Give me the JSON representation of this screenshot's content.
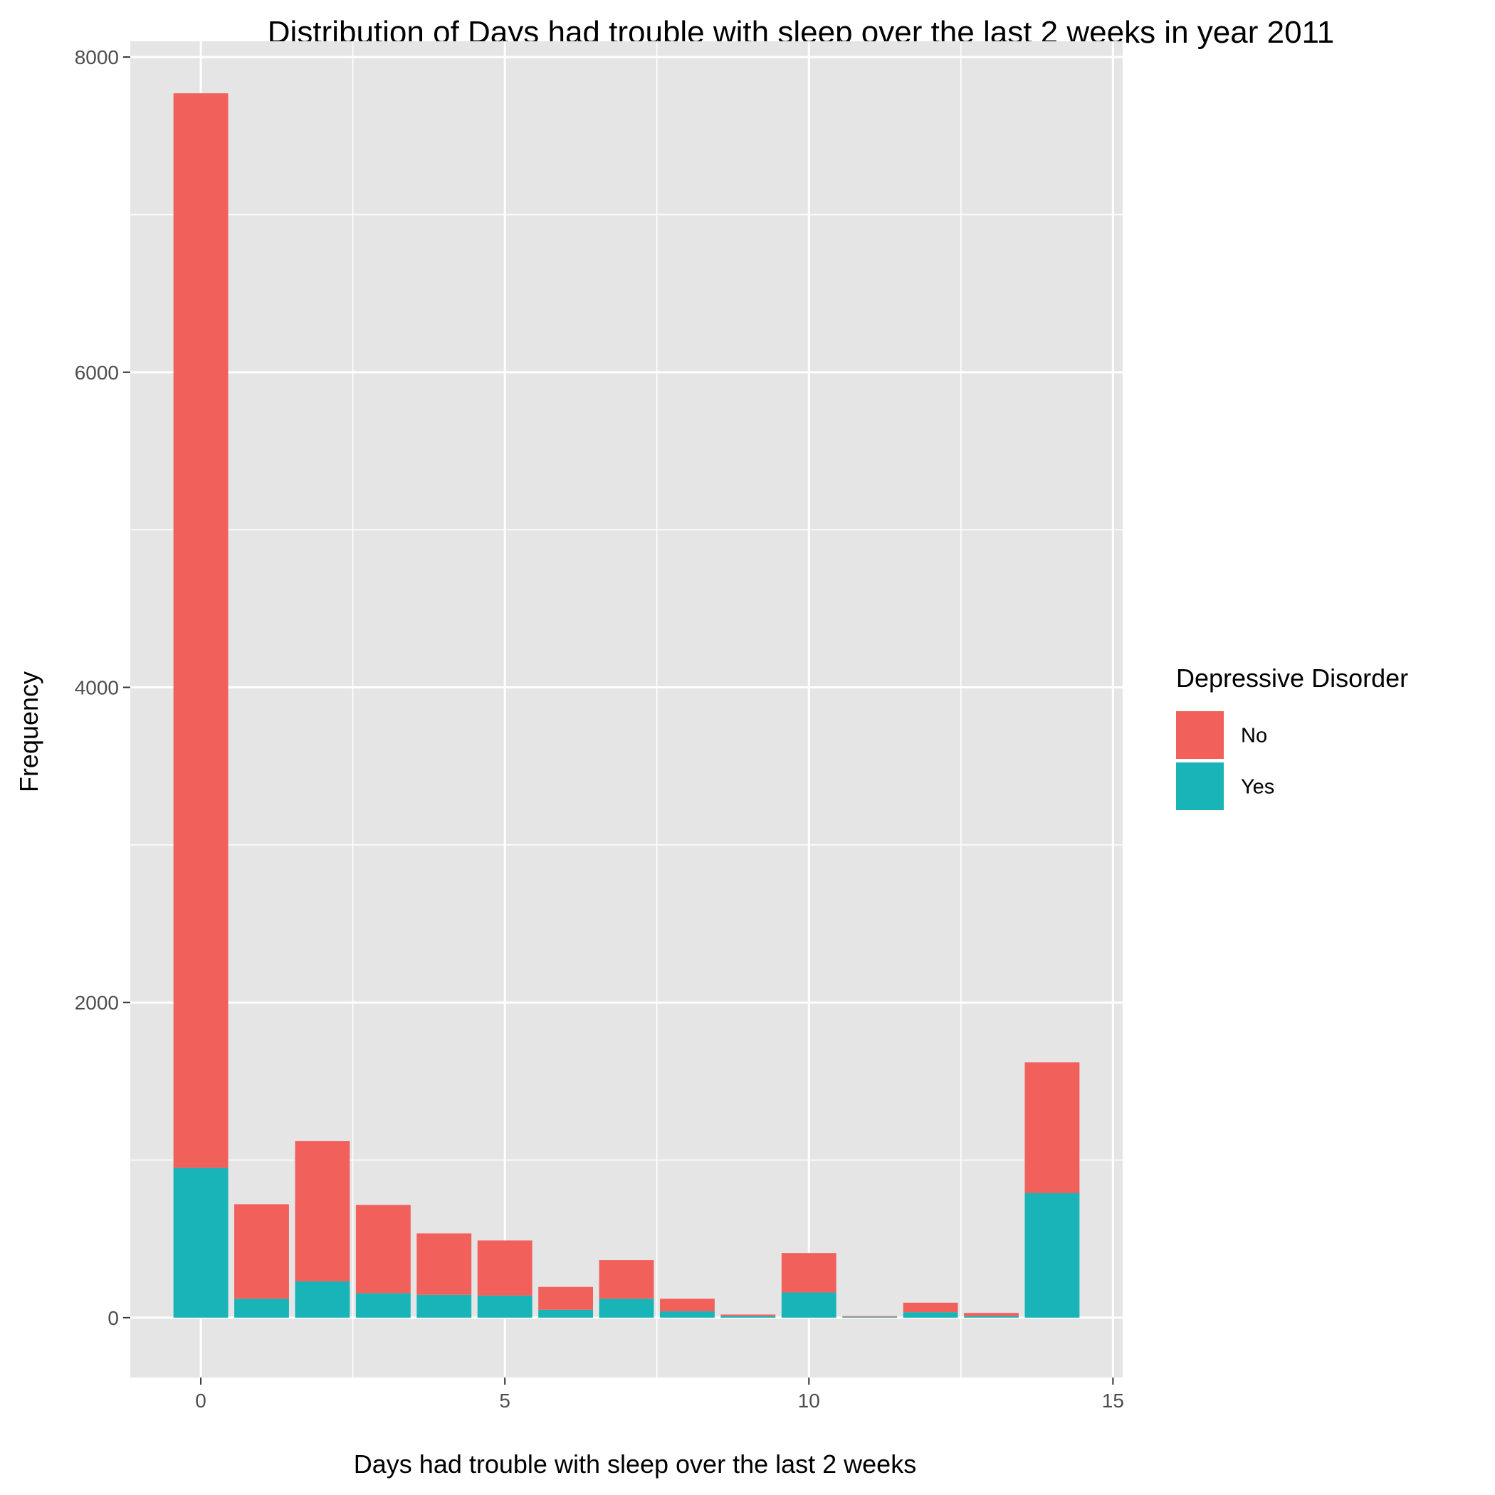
{
  "chart_data": {
    "type": "bar",
    "stacked": true,
    "title": "Distribution of Days had trouble with sleep over the last 2 weeks in year 2011",
    "xlabel": "Days had trouble with sleep over the last 2 weeks",
    "ylabel": "Frequency",
    "xlim": [
      -1.16,
      15.16
    ],
    "ylim": [
      -380,
      8100
    ],
    "x_ticks": [
      0,
      5,
      10,
      15
    ],
    "y_ticks": [
      0,
      2000,
      4000,
      6000,
      8000
    ],
    "x_tick_labels": [
      "0",
      "5",
      "10",
      "15"
    ],
    "y_tick_labels": [
      "0",
      "2000",
      "4000",
      "6000",
      "8000"
    ],
    "grid": true,
    "x": [
      0,
      1,
      2,
      3,
      4,
      5,
      6,
      7,
      8,
      9,
      10,
      11,
      12,
      13,
      14
    ],
    "series": [
      {
        "name": "Yes",
        "color": "#19B4B8",
        "values": [
          950,
          120,
          230,
          155,
          145,
          140,
          50,
          120,
          40,
          10,
          160,
          5,
          35,
          10,
          790
        ]
      },
      {
        "name": "No",
        "color": "#F2605C",
        "values": [
          6820,
          600,
          890,
          560,
          390,
          350,
          145,
          245,
          80,
          10,
          250,
          5,
          60,
          20,
          830
        ]
      }
    ],
    "stack_order_bottom_to_top": [
      "Yes",
      "No"
    ],
    "legend": {
      "title": "Depressive Disorder",
      "position": "right",
      "entries": [
        {
          "label": "No",
          "color": "#F2605C"
        },
        {
          "label": "Yes",
          "color": "#19B4B8"
        }
      ]
    },
    "panel_background": "#E5E5E5",
    "grid_color": "#FFFFFF"
  }
}
